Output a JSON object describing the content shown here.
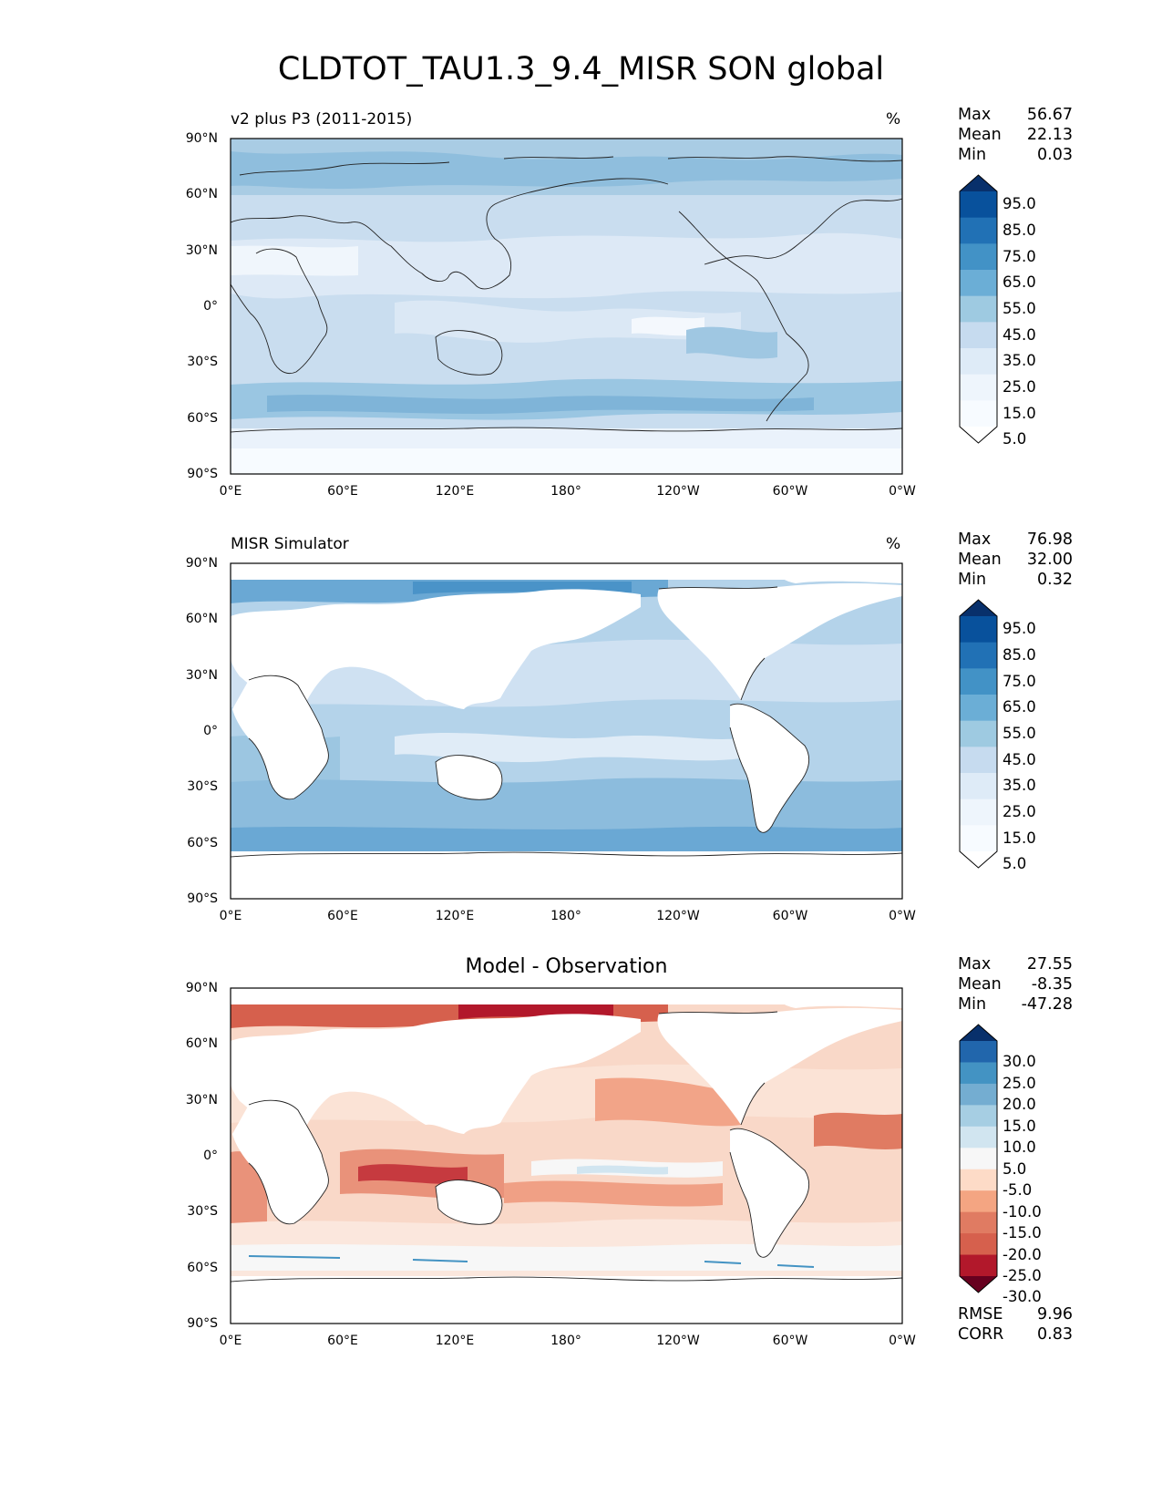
{
  "figure": {
    "title": "CLDTOT_TAU1.3_9.4_MISR SON global"
  },
  "axes": {
    "lat_ticks": [
      "90°N",
      "60°N",
      "30°N",
      "0°",
      "30°S",
      "60°S",
      "90°S"
    ],
    "lon_ticks": [
      "0°E",
      "60°E",
      "120°E",
      "180°",
      "120°W",
      "60°W",
      "0°W"
    ]
  },
  "panels": [
    {
      "name": "test",
      "title": "v2 plus P3 (2011-2015)",
      "units": "%",
      "stats": [
        {
          "label": "Max",
          "value": "56.67"
        },
        {
          "label": "Mean",
          "value": "22.13"
        },
        {
          "label": "Min",
          "value": "0.03"
        }
      ],
      "colorbar": {
        "labels": [
          "95.0",
          "85.0",
          "75.0",
          "65.0",
          "55.0",
          "45.0",
          "35.0",
          "25.0",
          "15.0",
          "5.0"
        ],
        "colors": [
          "#08306b",
          "#08519c",
          "#2171b5",
          "#4292c6",
          "#6baed6",
          "#9ecae1",
          "#c6dbef",
          "#deebf7",
          "#eef5fc",
          "#f7fbff"
        ]
      }
    },
    {
      "name": "reference",
      "title": "MISR Simulator",
      "units": "%",
      "stats": [
        {
          "label": "Max",
          "value": "76.98"
        },
        {
          "label": "Mean",
          "value": "32.00"
        },
        {
          "label": "Min",
          "value": "0.32"
        }
      ],
      "colorbar": {
        "labels": [
          "95.0",
          "85.0",
          "75.0",
          "65.0",
          "55.0",
          "45.0",
          "35.0",
          "25.0",
          "15.0",
          "5.0"
        ],
        "colors": [
          "#08306b",
          "#08519c",
          "#2171b5",
          "#4292c6",
          "#6baed6",
          "#9ecae1",
          "#c6dbef",
          "#deebf7",
          "#eef5fc",
          "#f7fbff"
        ]
      }
    },
    {
      "name": "difference",
      "title": "Model - Observation",
      "units": "",
      "stats": [
        {
          "label": "Max",
          "value": "27.55"
        },
        {
          "label": "Mean",
          "value": "-8.35"
        },
        {
          "label": "Min",
          "value": "-47.28"
        }
      ],
      "metrics": [
        {
          "label": "RMSE",
          "value": "9.96"
        },
        {
          "label": "CORR",
          "value": "0.83"
        }
      ],
      "colorbar": {
        "labels": [
          "30.0",
          "25.0",
          "20.0",
          "15.0",
          "10.0",
          "5.0",
          "-5.0",
          "-10.0",
          "-15.0",
          "-20.0",
          "-25.0",
          "-30.0"
        ],
        "colors": [
          "#08306b",
          "#2166ac",
          "#4393c3",
          "#74add1",
          "#a6cee3",
          "#d1e5f0",
          "#f7f7f7",
          "#fddbc7",
          "#f4a582",
          "#e07b62",
          "#d6604d",
          "#b2182b",
          "#67001f"
        ]
      }
    }
  ]
}
